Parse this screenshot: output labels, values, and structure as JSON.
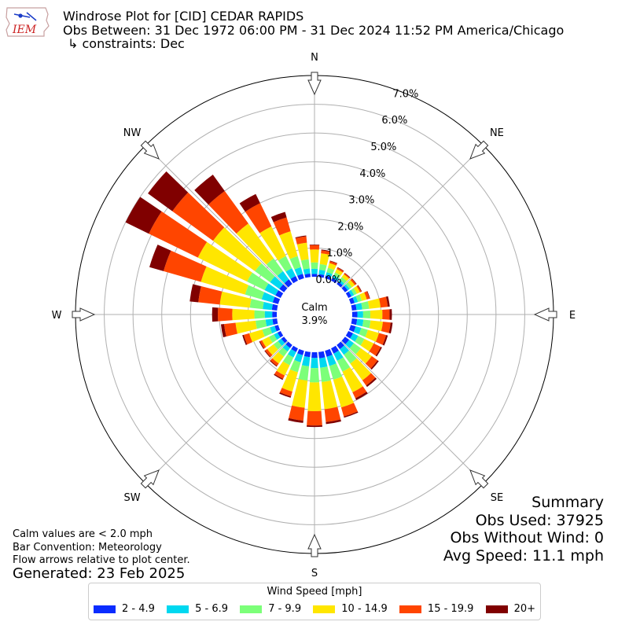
{
  "header": {
    "title": "Windrose Plot for [CID] CEDAR RAPIDS",
    "obs_between": "Obs Between: 31 Dec 1972 06:00 PM - 31 Dec 2024 11:52 PM America/Chicago",
    "constraints": "↳ constraints: Dec"
  },
  "logo": {
    "text": "IEM",
    "icon": "iowa-state-outline-icon"
  },
  "calm": {
    "label": "Calm",
    "value": "3.9%"
  },
  "notes": {
    "calm_threshold": "Calm values are < 2.0 mph",
    "bar_convention": "Bar Convention: Meteorology",
    "flow_arrows": "Flow arrows relative to plot center.",
    "generated": "Generated: 23 Feb 2025"
  },
  "summary": {
    "title": "Summary",
    "obs_used": "Obs Used: 37925",
    "obs_without_wind": "Obs Without Wind: 0",
    "avg_speed": "Avg Speed: 11.1 mph"
  },
  "legend": {
    "title": "Wind Speed [mph]",
    "items": [
      {
        "label": "2 - 4.9",
        "color": "#0a2cff"
      },
      {
        "label": "5 - 6.9",
        "color": "#00d8f0"
      },
      {
        "label": "7 - 9.9",
        "color": "#7cff79"
      },
      {
        "label": "10 - 14.9",
        "color": "#ffe600"
      },
      {
        "label": "15 - 19.9",
        "color": "#ff4500"
      },
      {
        "label": "20+",
        "color": "#800000"
      }
    ]
  },
  "chart_data": {
    "type": "windrose",
    "units": "%",
    "rlim": [
      0,
      7.0
    ],
    "radial_ticks": [
      "0.0%",
      "1.0%",
      "2.0%",
      "3.0%",
      "4.0%",
      "5.0%",
      "6.0%",
      "7.0%"
    ],
    "radial_tick_values": [
      0,
      1,
      2,
      3,
      4,
      5,
      6,
      7
    ],
    "compass_labels": [
      "N",
      "NE",
      "E",
      "SE",
      "S",
      "SW",
      "W",
      "NW"
    ],
    "direction_degrees": [
      0,
      10,
      20,
      30,
      40,
      50,
      60,
      70,
      80,
      90,
      100,
      110,
      120,
      130,
      140,
      150,
      160,
      170,
      180,
      190,
      200,
      210,
      220,
      230,
      240,
      250,
      260,
      270,
      280,
      290,
      300,
      310,
      320,
      330,
      340,
      350
    ],
    "series_names": [
      "2 - 4.9",
      "5 - 6.9",
      "7 - 9.9",
      "10 - 14.9",
      "15 - 19.9",
      "20+"
    ],
    "cumulative_values": [
      [
        0.1,
        0.28,
        0.5,
        0.95,
        1.1,
        1.12
      ],
      [
        0.1,
        0.25,
        0.45,
        0.83,
        0.93,
        0.96
      ],
      [
        0.1,
        0.22,
        0.38,
        0.55,
        0.62,
        0.64
      ],
      [
        0.1,
        0.2,
        0.32,
        0.45,
        0.5,
        0.52
      ],
      [
        0.1,
        0.18,
        0.3,
        0.42,
        0.46,
        0.48
      ],
      [
        0.12,
        0.2,
        0.3,
        0.42,
        0.48,
        0.5
      ],
      [
        0.12,
        0.22,
        0.33,
        0.45,
        0.5,
        0.52
      ],
      [
        0.14,
        0.26,
        0.4,
        0.58,
        0.68,
        0.7
      ],
      [
        0.16,
        0.36,
        0.6,
        1.0,
        1.25,
        1.32
      ],
      [
        0.18,
        0.38,
        0.63,
        1.05,
        1.3,
        1.38
      ],
      [
        0.18,
        0.4,
        0.65,
        1.08,
        1.35,
        1.42
      ],
      [
        0.18,
        0.38,
        0.62,
        1.02,
        1.28,
        1.34
      ],
      [
        0.18,
        0.38,
        0.62,
        0.98,
        1.25,
        1.3
      ],
      [
        0.18,
        0.38,
        0.68,
        1.15,
        1.4,
        1.45
      ],
      [
        0.18,
        0.42,
        0.8,
        1.52,
        1.74,
        1.8
      ],
      [
        0.2,
        0.48,
        0.9,
        1.7,
        1.93,
        2.0
      ],
      [
        0.22,
        0.55,
        1.05,
        2.05,
        2.38,
        2.42
      ],
      [
        0.22,
        0.55,
        1.05,
        2.0,
        2.45,
        2.52
      ],
      [
        0.2,
        0.55,
        1.05,
        2.05,
        2.55,
        2.6
      ],
      [
        0.18,
        0.5,
        1.0,
        1.95,
        2.4,
        2.48
      ],
      [
        0.16,
        0.42,
        0.78,
        1.48,
        1.65,
        1.7
      ],
      [
        0.14,
        0.35,
        0.65,
        1.05,
        1.18,
        1.22
      ],
      [
        0.13,
        0.28,
        0.5,
        0.8,
        0.9,
        0.93
      ],
      [
        0.12,
        0.26,
        0.45,
        0.72,
        0.81,
        0.84
      ],
      [
        0.12,
        0.26,
        0.45,
        0.72,
        0.8,
        0.83
      ],
      [
        0.13,
        0.3,
        0.58,
        1.05,
        1.25,
        1.3
      ],
      [
        0.16,
        0.4,
        0.75,
        1.45,
        1.85,
        1.96
      ],
      [
        0.16,
        0.42,
        0.78,
        1.55,
        2.05,
        2.25
      ],
      [
        0.18,
        0.5,
        0.95,
        2.0,
        2.75,
        3.05
      ],
      [
        0.2,
        0.6,
        1.2,
        2.8,
        4.15,
        4.66
      ],
      [
        0.2,
        0.62,
        1.3,
        3.2,
        5.1,
        6.0
      ],
      [
        0.2,
        0.6,
        1.25,
        3.05,
        4.8,
        5.85
      ],
      [
        0.2,
        0.55,
        1.1,
        2.6,
        4.0,
        4.7
      ],
      [
        0.18,
        0.48,
        0.95,
        2.1,
        3.0,
        3.35
      ],
      [
        0.16,
        0.4,
        0.8,
        1.7,
        2.2,
        2.4
      ],
      [
        0.12,
        0.3,
        0.62,
        1.2,
        1.42,
        1.45
      ]
    ]
  }
}
